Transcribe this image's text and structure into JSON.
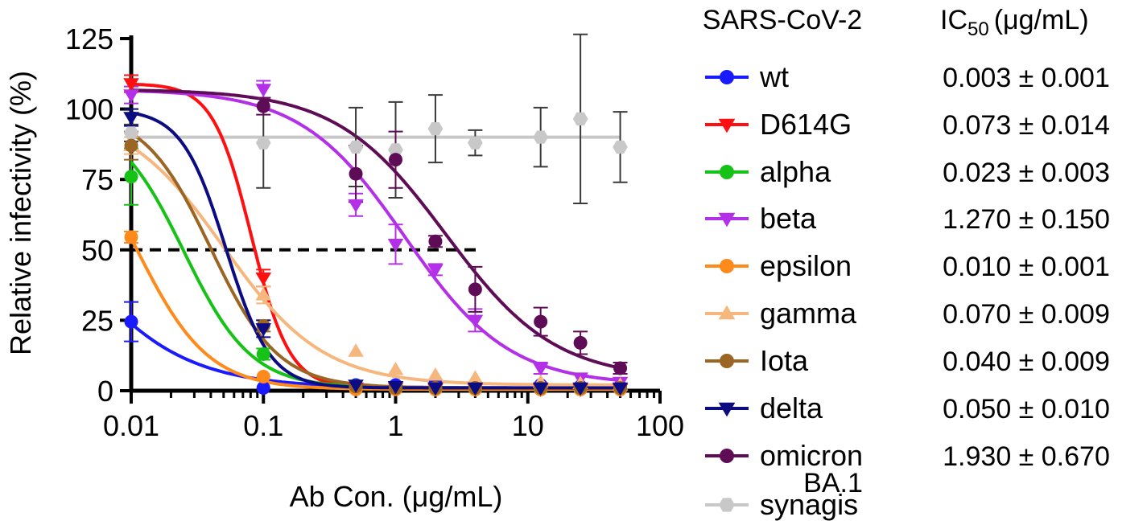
{
  "chart_data": {
    "type": "line",
    "title": "",
    "xlabel": "Ab Con. (μg/mL)",
    "ylabel": "Relative infectivity (%)",
    "xscale": "log",
    "xlim": [
      0.01,
      100
    ],
    "ylim": [
      0,
      125
    ],
    "x_ticks": [
      {
        "value": 0.01,
        "label": "0.01"
      },
      {
        "value": 0.1,
        "label": "0.1"
      },
      {
        "value": 1,
        "label": "1"
      },
      {
        "value": 10,
        "label": "10"
      },
      {
        "value": 100,
        "label": "100"
      }
    ],
    "y_ticks": [
      {
        "value": 0,
        "label": "0"
      },
      {
        "value": 25,
        "label": "25"
      },
      {
        "value": 50,
        "label": "50"
      },
      {
        "value": 75,
        "label": "75"
      },
      {
        "value": 100,
        "label": "100"
      },
      {
        "value": 125,
        "label": "125"
      }
    ],
    "reference_line": {
      "y": 50,
      "style": "dashed",
      "color": "#000000"
    },
    "legend_title": "SARS-CoV-2",
    "ic50_header": {
      "main": "IC",
      "sub": "50",
      "unit": "(μg/mL)"
    },
    "series": [
      {
        "name": "wt",
        "color": "#1a1aff",
        "marker": "circle",
        "ic50": "0.003 ± 0.001",
        "fit": {
          "bottom": 1,
          "top": 100,
          "ic50": 0.003,
          "hill": 1.0
        },
        "points": [
          [
            0.01,
            24.5,
            7
          ],
          [
            0.1,
            1,
            0.5
          ],
          [
            0.5,
            2,
            0.5
          ],
          [
            1,
            2,
            0.5
          ],
          [
            2,
            2.5,
            0.5
          ],
          [
            4,
            2,
            0.5
          ],
          [
            12.5,
            2,
            0.5
          ],
          [
            25,
            1.5,
            0.5
          ],
          [
            50,
            1.5,
            0.5
          ]
        ]
      },
      {
        "name": "D614G",
        "color": "#ff1010",
        "marker": "triangle-down",
        "ic50": "0.073 ± 0.014",
        "fit": {
          "bottom": 1,
          "top": 109,
          "ic50": 0.081,
          "hill": 3.0
        },
        "points": [
          [
            0.01,
            109,
            3
          ],
          [
            0.1,
            40,
            3
          ],
          [
            0.5,
            1,
            0.5
          ],
          [
            1,
            1,
            0.5
          ],
          [
            2,
            0.5,
            0.5
          ],
          [
            4,
            0.5,
            0.5
          ],
          [
            12.5,
            0.5,
            0.5
          ],
          [
            25,
            0.5,
            0.5
          ],
          [
            50,
            0.5,
            0.5
          ]
        ]
      },
      {
        "name": "alpha",
        "color": "#17c217",
        "marker": "circle",
        "ic50": "0.023 ± 0.003",
        "fit": {
          "bottom": 1,
          "top": 98,
          "ic50": 0.025,
          "hill": 1.7
        },
        "points": [
          [
            0.01,
            76,
            10
          ],
          [
            0.1,
            13,
            2
          ],
          [
            0.5,
            1.5,
            0.5
          ],
          [
            1,
            1,
            0.5
          ],
          [
            2,
            0.5,
            0.5
          ],
          [
            4,
            0.5,
            0.5
          ],
          [
            12.5,
            0.5,
            0.5
          ],
          [
            25,
            0.5,
            0.5
          ],
          [
            50,
            0.5,
            0.5
          ]
        ]
      },
      {
        "name": "beta",
        "color": "#b430e8",
        "marker": "triangle-down",
        "ic50": "1.270 ± 0.150",
        "fit": {
          "bottom": 2,
          "top": 107,
          "ic50": 1.18,
          "hill": 1.1
        },
        "points": [
          [
            0.01,
            105,
            3
          ],
          [
            0.1,
            107,
            3
          ],
          [
            0.5,
            66,
            4
          ],
          [
            1,
            52,
            7
          ],
          [
            2,
            43,
            2
          ],
          [
            4,
            25,
            4
          ],
          [
            12.5,
            8,
            2
          ],
          [
            25,
            4.5,
            1
          ],
          [
            50,
            3,
            1
          ]
        ]
      },
      {
        "name": "epsilon",
        "color": "#ff8a1c",
        "marker": "circle",
        "ic50": "0.010 ± 0.001",
        "fit": {
          "bottom": 0.5,
          "top": 100,
          "ic50": 0.011,
          "hill": 1.6
        },
        "points": [
          [
            0.01,
            54.5,
            2
          ],
          [
            0.1,
            5,
            1
          ],
          [
            0.5,
            0.5,
            0.5
          ],
          [
            1,
            0.5,
            0.5
          ],
          [
            2,
            0.5,
            0.5
          ],
          [
            4,
            0.5,
            0.5
          ],
          [
            12.5,
            0.5,
            0.5
          ],
          [
            25,
            0.5,
            0.5
          ],
          [
            50,
            0.5,
            0.5
          ]
        ]
      },
      {
        "name": "gamma",
        "color": "#f5b77d",
        "marker": "triangle-up",
        "ic50": "0.070 ± 0.009",
        "fit": {
          "bottom": 2,
          "top": 100,
          "ic50": 0.05,
          "hill": 1.15
        },
        "points": [
          [
            0.01,
            87,
            3
          ],
          [
            0.1,
            34,
            3
          ],
          [
            0.5,
            14,
            1
          ],
          [
            1,
            7.5,
            1
          ],
          [
            2,
            5.5,
            1
          ],
          [
            4,
            4.5,
            1
          ],
          [
            12.5,
            3,
            0.5
          ],
          [
            25,
            2.5,
            0.5
          ],
          [
            50,
            2,
            0.5
          ]
        ]
      },
      {
        "name": "Iota",
        "color": "#9b6524",
        "marker": "circle",
        "ic50": "0.040 ± 0.009",
        "fit": {
          "bottom": 1,
          "top": 100,
          "ic50": 0.04,
          "hill": 1.7
        },
        "points": [
          [
            0.01,
            87,
            5
          ],
          [
            0.1,
            23,
            2
          ],
          [
            0.5,
            1.5,
            0.5
          ],
          [
            1,
            1,
            0.5
          ],
          [
            2,
            1,
            0.5
          ],
          [
            4,
            1,
            0.5
          ],
          [
            12.5,
            1,
            0.5
          ],
          [
            25,
            1,
            0.5
          ],
          [
            50,
            1,
            0.5
          ]
        ]
      },
      {
        "name": "delta",
        "color": "#0c0c82",
        "marker": "triangle-down",
        "ic50": "0.050 ± 0.010",
        "fit": {
          "bottom": 1,
          "top": 100,
          "ic50": 0.052,
          "hill": 2.6
        },
        "points": [
          [
            0.01,
            97,
            3
          ],
          [
            0.1,
            22,
            3
          ],
          [
            0.5,
            2,
            0.5
          ],
          [
            1,
            1.5,
            0.5
          ],
          [
            2,
            1,
            0.5
          ],
          [
            4,
            1,
            0.5
          ],
          [
            12.5,
            1,
            0.5
          ],
          [
            25,
            1,
            0.5
          ],
          [
            50,
            1,
            0.5
          ]
        ]
      },
      {
        "name": "omicron",
        "name2": "BA.1",
        "color": "#5e0c56",
        "marker": "circle",
        "ic50": "1.930 ± 0.670",
        "fit": {
          "bottom": 4,
          "top": 107,
          "ic50": 2.4,
          "hill": 1.05
        },
        "points": [
          [
            0.1,
            101,
            3
          ],
          [
            0.5,
            77,
            10
          ],
          [
            1,
            82,
            10
          ],
          [
            2,
            53,
            2
          ],
          [
            4,
            36,
            8
          ],
          [
            12.5,
            24.5,
            5
          ],
          [
            25,
            17,
            4
          ],
          [
            50,
            8,
            2
          ]
        ]
      },
      {
        "name": "synagis",
        "color": "#c8c8c8",
        "marker": "hexagon",
        "ic50": "",
        "fit": {
          "flat": 90
        },
        "points": [
          [
            0.01,
            91.5,
            3
          ],
          [
            0.1,
            88,
            16
          ],
          [
            0.5,
            86.5,
            14
          ],
          [
            1,
            85.5,
            17
          ],
          [
            2,
            93,
            12
          ],
          [
            4,
            88,
            4.5
          ],
          [
            12.5,
            90,
            10.5
          ],
          [
            25,
            96.5,
            30
          ],
          [
            50,
            86.5,
            12.5
          ]
        ]
      }
    ]
  }
}
